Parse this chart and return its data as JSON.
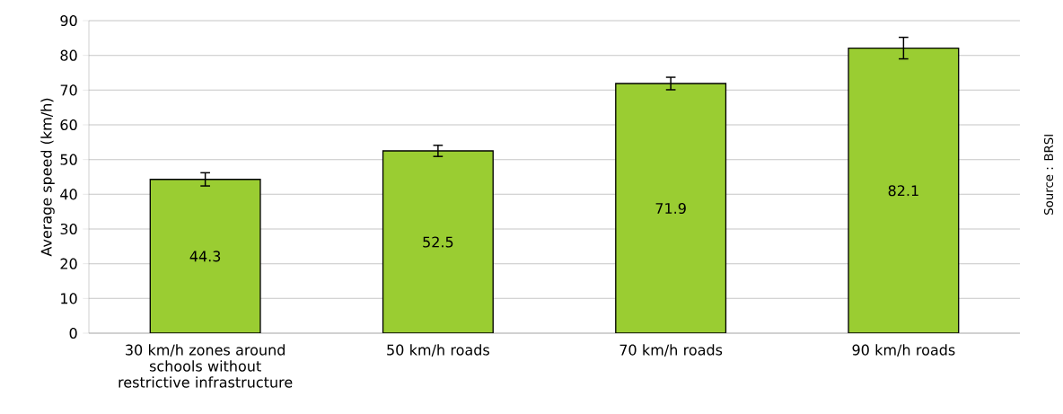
{
  "chart_data": {
    "type": "bar",
    "ylabel": "Average speed (km/h)",
    "categories": [
      "30 km/h zones around schools without restrictive infrastructure",
      "50 km/h roads",
      "70 km/h roads",
      "90 km/h roads"
    ],
    "values": [
      44.3,
      52.5,
      71.9,
      82.1
    ],
    "errors": [
      1.9,
      1.6,
      1.8,
      3.1
    ],
    "value_labels": [
      "44.3",
      "52.5",
      "71.9",
      "82.1"
    ],
    "color": "#9acd32",
    "ylim": [
      0,
      90
    ],
    "yticks": [
      0,
      10,
      20,
      30,
      40,
      50,
      60,
      70,
      80,
      90
    ],
    "grid": "y",
    "annotations": [
      "Source : BRSI"
    ]
  }
}
